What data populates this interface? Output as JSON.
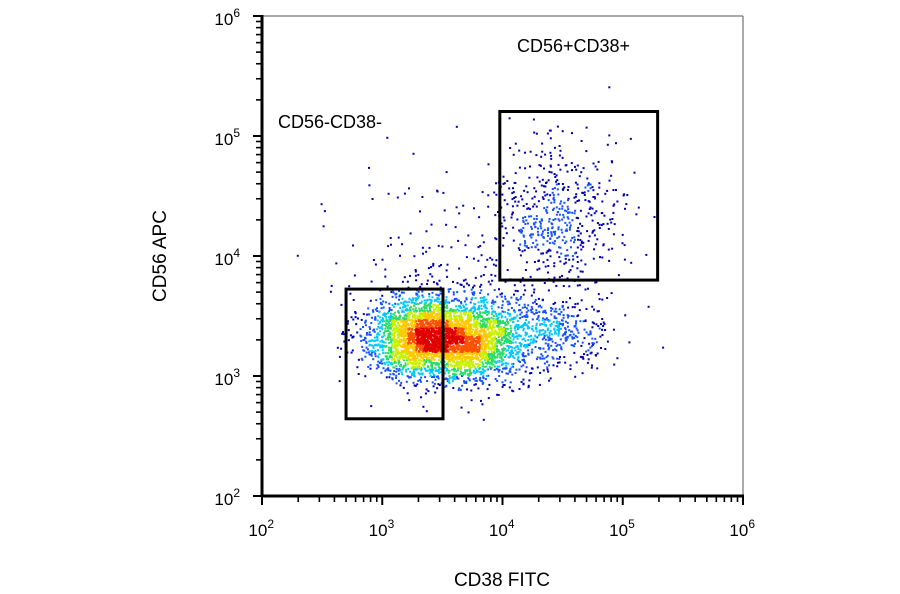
{
  "chart_data": {
    "type": "scatter",
    "xlabel": "CD38 FITC",
    "ylabel": "CD56 APC",
    "x_scale": "log",
    "y_scale": "log",
    "xlim": [
      100,
      1000000
    ],
    "ylim": [
      100,
      1000000
    ],
    "x_ticks": [
      {
        "base": "10",
        "exp": "2",
        "value": 100
      },
      {
        "base": "10",
        "exp": "3",
        "value": 1000
      },
      {
        "base": "10",
        "exp": "4",
        "value": 10000
      },
      {
        "base": "10",
        "exp": "5",
        "value": 100000
      },
      {
        "base": "10",
        "exp": "6",
        "value": 1000000
      }
    ],
    "y_ticks": [
      {
        "base": "10",
        "exp": "2",
        "value": 100
      },
      {
        "base": "10",
        "exp": "3",
        "value": 1000
      },
      {
        "base": "10",
        "exp": "4",
        "value": 10000
      },
      {
        "base": "10",
        "exp": "5",
        "value": 100000
      },
      {
        "base": "10",
        "exp": "6",
        "value": 1000000
      }
    ],
    "density_colormap": [
      "#0000b4",
      "#1450ff",
      "#00c8ff",
      "#28dc64",
      "#c8f000",
      "#ffc800",
      "#ff5000",
      "#e10000"
    ],
    "populations": [
      {
        "center_x": 1900,
        "center_y": 2100,
        "spread_x_log": 0.21,
        "spread_y_log": 0.17,
        "weight": 0.35
      },
      {
        "center_x": 5000,
        "center_y": 2000,
        "spread_x_log": 0.24,
        "spread_y_log": 0.17,
        "weight": 0.42
      },
      {
        "center_x": 22000,
        "center_y": 2300,
        "spread_x_log": 0.28,
        "spread_y_log": 0.17,
        "weight": 0.1
      },
      {
        "center_x": 30000,
        "center_y": 22000,
        "spread_x_log": 0.28,
        "spread_y_log": 0.32,
        "weight": 0.1
      },
      {
        "center_x": 3500,
        "center_y": 9000,
        "spread_x_log": 0.5,
        "spread_y_log": 0.38,
        "weight": 0.03
      }
    ],
    "gates": [
      {
        "name": "CD56-CD38-",
        "x_range": [
          500,
          3200
        ],
        "y_range": [
          440,
          5300
        ]
      },
      {
        "name": "CD56+CD38+",
        "x_range": [
          9500,
          195000
        ],
        "y_range": [
          6300,
          160000
        ]
      }
    ]
  }
}
